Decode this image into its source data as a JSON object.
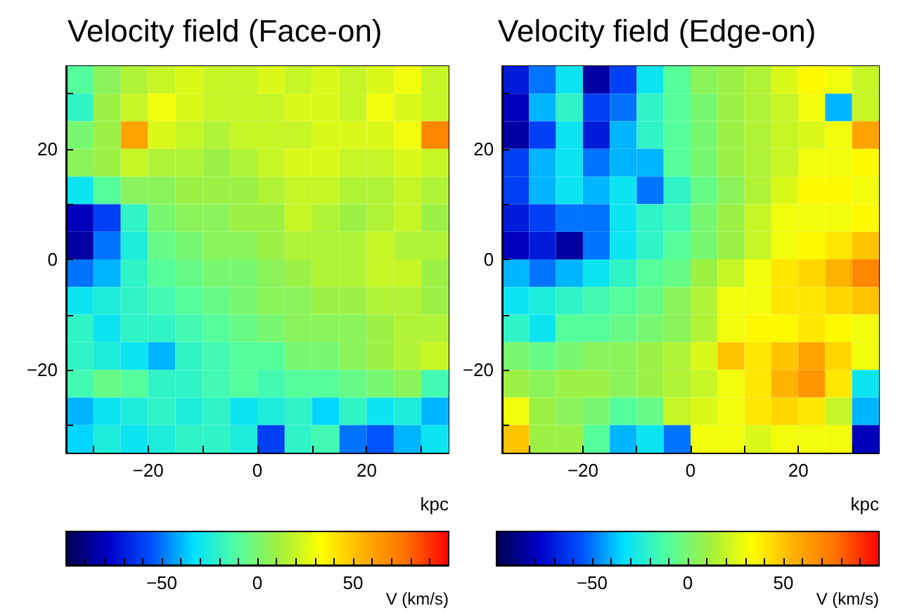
{
  "chart_data": [
    {
      "type": "heatmap",
      "title": "Velocity field (Face-on)",
      "xlabel": "kpc",
      "clabel": "V (km/s)",
      "clim": [
        -100,
        100
      ],
      "cticks": [
        {
          "value": -90,
          "label": null
        },
        {
          "value": -80,
          "label": null
        },
        {
          "value": -70,
          "label": null
        },
        {
          "value": -60,
          "label": null
        },
        -50,
        {
          "value": -40,
          "label": null
        },
        {
          "value": -30,
          "label": null
        },
        {
          "value": -20,
          "label": null
        },
        {
          "value": -10,
          "label": null
        },
        0,
        {
          "value": 10,
          "label": null
        },
        {
          "value": 20,
          "label": null
        },
        {
          "value": 30,
          "label": null
        },
        {
          "value": 40,
          "label": null
        },
        50,
        {
          "value": 60,
          "label": null
        },
        {
          "value": 70,
          "label": null
        },
        {
          "value": 80,
          "label": null
        },
        {
          "value": 90,
          "label": null
        }
      ],
      "xlim": [
        -35,
        35
      ],
      "ylim": [
        -35,
        35
      ],
      "xticks": [
        {
          "value": -30,
          "label": null
        },
        -20,
        {
          "value": -10,
          "label": null
        },
        0,
        {
          "value": 10,
          "label": null
        },
        20,
        {
          "value": 30,
          "label": null
        }
      ],
      "yticks": [
        {
          "value": -30,
          "label": null
        },
        -20,
        {
          "value": -10,
          "label": null
        },
        0,
        {
          "value": 10,
          "label": null
        },
        20,
        {
          "value": 30,
          "label": null
        }
      ],
      "cells": [
        [
          -10,
          5,
          15,
          20,
          25,
          20,
          20,
          25,
          20,
          25,
          20,
          25,
          30,
          20
        ],
        [
          -20,
          10,
          20,
          30,
          25,
          20,
          20,
          20,
          25,
          25,
          20,
          30,
          25,
          20
        ],
        [
          0,
          10,
          60,
          25,
          20,
          15,
          20,
          20,
          20,
          25,
          25,
          25,
          30,
          70
        ],
        [
          5,
          10,
          20,
          15,
          15,
          10,
          15,
          20,
          25,
          25,
          20,
          20,
          25,
          20
        ],
        [
          -30,
          -10,
          5,
          5,
          10,
          10,
          10,
          15,
          20,
          20,
          15,
          15,
          20,
          15
        ],
        [
          -80,
          -60,
          -20,
          0,
          5,
          5,
          10,
          10,
          20,
          15,
          10,
          15,
          20,
          10
        ],
        [
          -85,
          -50,
          -25,
          -5,
          0,
          5,
          5,
          10,
          15,
          15,
          15,
          20,
          15,
          15
        ],
        [
          -50,
          -40,
          -20,
          -10,
          -5,
          0,
          0,
          5,
          10,
          15,
          15,
          20,
          20,
          10
        ],
        [
          -30,
          -25,
          -20,
          -15,
          -10,
          -5,
          0,
          5,
          5,
          10,
          10,
          15,
          15,
          10
        ],
        [
          -20,
          -30,
          -20,
          -20,
          -15,
          -10,
          -5,
          0,
          5,
          5,
          5,
          10,
          15,
          15
        ],
        [
          -20,
          -25,
          -30,
          -40,
          -20,
          -15,
          -10,
          -10,
          0,
          0,
          5,
          10,
          15,
          20
        ],
        [
          -15,
          -5,
          -10,
          -20,
          -20,
          -15,
          -10,
          -15,
          -10,
          -10,
          -5,
          0,
          5,
          -15
        ],
        [
          -40,
          -30,
          -25,
          -20,
          -25,
          -20,
          -30,
          -25,
          -20,
          -35,
          -20,
          -30,
          -25,
          -40
        ],
        [
          -35,
          -25,
          -30,
          -25,
          -20,
          -20,
          -25,
          -60,
          -20,
          -15,
          -50,
          -55,
          -40,
          -30
        ]
      ]
    },
    {
      "type": "heatmap",
      "title": "Velocity field (Edge-on)",
      "xlabel": "kpc",
      "clabel": "V (km/s)",
      "clim": [
        -100,
        100
      ],
      "cticks": [
        {
          "value": -90,
          "label": null
        },
        {
          "value": -80,
          "label": null
        },
        {
          "value": -70,
          "label": null
        },
        {
          "value": -60,
          "label": null
        },
        -50,
        {
          "value": -40,
          "label": null
        },
        {
          "value": -30,
          "label": null
        },
        {
          "value": -20,
          "label": null
        },
        {
          "value": -10,
          "label": null
        },
        0,
        {
          "value": 10,
          "label": null
        },
        {
          "value": 20,
          "label": null
        },
        {
          "value": 30,
          "label": null
        },
        {
          "value": 40,
          "label": null
        },
        50,
        {
          "value": 60,
          "label": null
        },
        {
          "value": 70,
          "label": null
        },
        {
          "value": 80,
          "label": null
        },
        {
          "value": 90,
          "label": null
        }
      ],
      "xlim": [
        -35,
        35
      ],
      "ylim": [
        -35,
        35
      ],
      "xticks": [
        {
          "value": -30,
          "label": null
        },
        -20,
        {
          "value": -10,
          "label": null
        },
        0,
        {
          "value": 10,
          "label": null
        },
        20,
        {
          "value": 30,
          "label": null
        }
      ],
      "yticks": [
        {
          "value": -30,
          "label": null
        },
        -20,
        {
          "value": -10,
          "label": null
        },
        0,
        {
          "value": 10,
          "label": null
        },
        20,
        {
          "value": 30,
          "label": null
        }
      ],
      "cells": [
        [
          -70,
          -50,
          -30,
          -85,
          -60,
          -30,
          -10,
          5,
          10,
          15,
          25,
          35,
          30,
          20
        ],
        [
          -80,
          -40,
          -20,
          -60,
          -50,
          -20,
          -10,
          0,
          10,
          15,
          20,
          30,
          -40,
          20
        ],
        [
          -85,
          -60,
          -30,
          -70,
          -40,
          -20,
          -10,
          0,
          10,
          15,
          20,
          25,
          30,
          60
        ],
        [
          -60,
          -40,
          -30,
          -50,
          -40,
          -40,
          -10,
          0,
          10,
          15,
          20,
          30,
          30,
          35
        ],
        [
          -60,
          -40,
          -30,
          -40,
          -30,
          -50,
          -20,
          -5,
          5,
          15,
          25,
          35,
          35,
          30
        ],
        [
          -70,
          -60,
          -50,
          -50,
          -30,
          -20,
          -15,
          0,
          10,
          20,
          30,
          30,
          30,
          35
        ],
        [
          -80,
          -70,
          -85,
          -50,
          -30,
          -20,
          -10,
          0,
          10,
          20,
          30,
          35,
          40,
          50
        ],
        [
          -40,
          -50,
          -40,
          -30,
          -20,
          -10,
          -5,
          10,
          20,
          30,
          40,
          45,
          55,
          70
        ],
        [
          -30,
          -25,
          -20,
          -15,
          -10,
          -5,
          5,
          15,
          30,
          30,
          40,
          40,
          45,
          50
        ],
        [
          -20,
          -30,
          -10,
          -10,
          -5,
          0,
          5,
          15,
          30,
          35,
          35,
          40,
          35,
          30
        ],
        [
          0,
          -5,
          0,
          5,
          5,
          10,
          15,
          25,
          50,
          40,
          50,
          60,
          45,
          30
        ],
        [
          10,
          5,
          10,
          10,
          5,
          10,
          15,
          20,
          30,
          40,
          55,
          65,
          40,
          -30
        ],
        [
          30,
          10,
          5,
          0,
          -10,
          -5,
          20,
          25,
          30,
          40,
          45,
          40,
          20,
          -40
        ],
        [
          50,
          10,
          10,
          -10,
          -40,
          -30,
          -50,
          30,
          30,
          25,
          30,
          30,
          30,
          -80
        ]
      ]
    }
  ]
}
